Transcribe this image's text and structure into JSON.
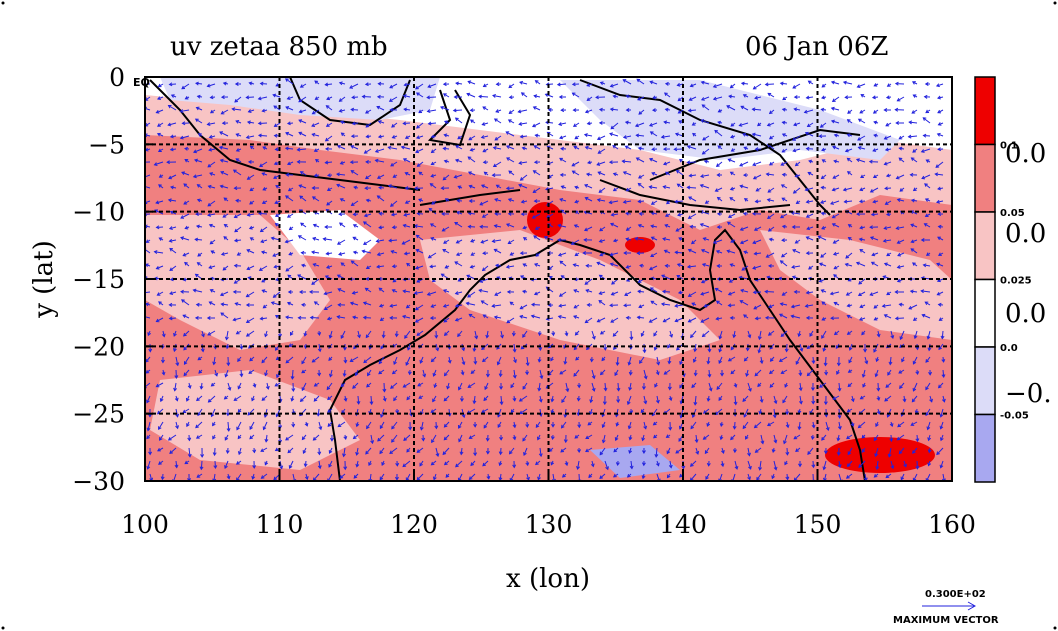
{
  "title_left": "uv zetaa 850 mb",
  "title_right": "06 Jan 06Z",
  "xlabel": "x (lon)",
  "ylabel": "y (lat)",
  "eq_label": "EQ",
  "x_ticks": [
    "100",
    "110",
    "120",
    "130",
    "140",
    "150",
    "160"
  ],
  "y_ticks": [
    "0",
    "−5",
    "−10",
    "−15",
    "−20",
    "−25",
    "−30"
  ],
  "x_range": [
    100,
    160
  ],
  "y_range": [
    -30,
    0
  ],
  "colorbar": {
    "levels_small": [
      "0.1",
      "0.05",
      "0.025",
      "0.0",
      "-0.05"
    ],
    "levels_large": [
      "0.0",
      "0.0",
      "0.0",
      "−0."
    ],
    "colors": [
      "#ee0000",
      "#f08080",
      "#f8c4c4",
      "#ffffff",
      "#dcdcf8",
      "#a8a8f0"
    ]
  },
  "vector_key": {
    "value": "0.300E+02",
    "label": "MAXIMUM VECTOR"
  },
  "colors": {
    "land_outline": "#000000",
    "vectors": "#2222dd",
    "grid": "#000000",
    "contour": "#cc0000"
  }
}
